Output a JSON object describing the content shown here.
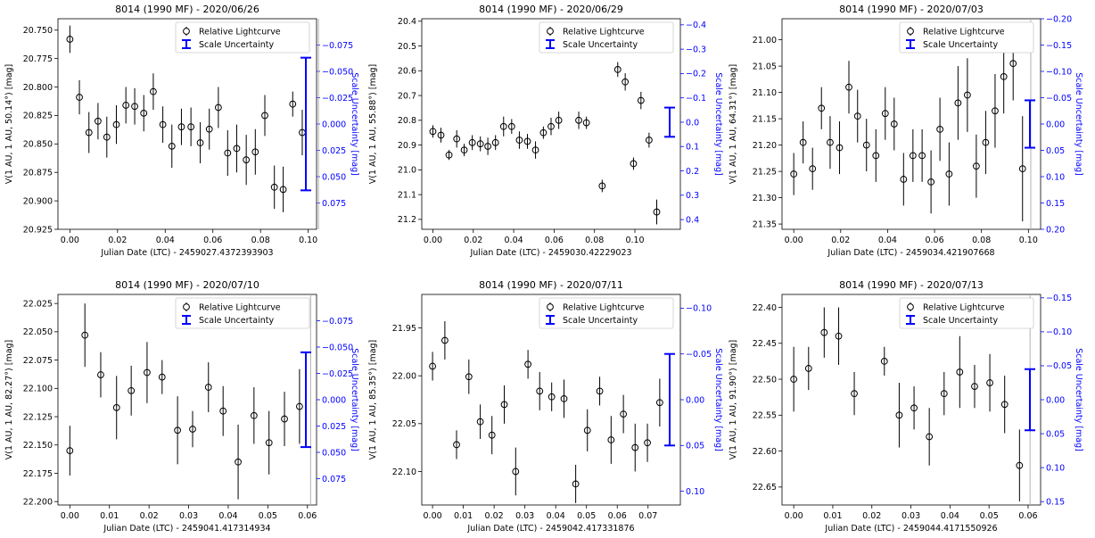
{
  "colors": {
    "data": "#000000",
    "scale": "#0000ff",
    "text": "#000000",
    "right_axis": "#0000ff"
  },
  "legend_labels": {
    "curve": "Relative Lightcurve",
    "scale": "Scale Uncertainty"
  },
  "chart_data": [
    {
      "type": "scatter",
      "title": "8014 (1990 MF) - 2020/06/26",
      "xlabel": "Julian Date (LTC) - 2459027.4372393903",
      "ylabel": "V(1 AU, 1 AU, 50.14°) [mag]",
      "y2label": "Scale Uncertainty [mag]",
      "xlim": [
        -0.005,
        0.1035
      ],
      "ylim": [
        20.925,
        20.74
      ],
      "y2lim": [
        0.1,
        -0.1
      ],
      "xticks": [
        "0.00",
        "0.02",
        "0.04",
        "0.06",
        "0.08",
        "0.10"
      ],
      "yticks": [
        "20.750",
        "20.775",
        "20.800",
        "20.825",
        "20.850",
        "20.875",
        "20.900",
        "20.925"
      ],
      "y2ticks": [
        "−0.075",
        "−0.050",
        "−0.025",
        "0.000",
        "0.025",
        "0.050",
        "0.075"
      ],
      "legend": "top-right",
      "vline": 0.1043,
      "scale_bar": [
        -0.063,
        0.063
      ],
      "series": [
        {
          "x": [
            0.0,
            0.004,
            0.008,
            0.0118,
            0.0155,
            0.0195,
            0.0235,
            0.0272,
            0.031,
            0.035,
            0.039,
            0.0428,
            0.0468,
            0.0508,
            0.0547,
            0.0585,
            0.0623,
            0.0662,
            0.07,
            0.074,
            0.0778,
            0.0818,
            0.0858,
            0.0895,
            0.0935,
            0.0975
          ],
          "y": [
            20.758,
            20.809,
            20.84,
            20.83,
            20.844,
            20.833,
            20.816,
            20.817,
            20.823,
            20.804,
            20.833,
            20.852,
            20.835,
            20.835,
            20.849,
            20.837,
            20.818,
            20.858,
            20.854,
            20.864,
            20.857,
            20.825,
            20.888,
            20.89,
            20.815,
            20.84
          ],
          "err": [
            0.012,
            0.015,
            0.018,
            0.016,
            0.018,
            0.017,
            0.016,
            0.016,
            0.016,
            0.016,
            0.016,
            0.019,
            0.016,
            0.017,
            0.018,
            0.018,
            0.018,
            0.02,
            0.021,
            0.022,
            0.02,
            0.018,
            0.019,
            0.02,
            0.011,
            0.02
          ]
        }
      ]
    },
    {
      "type": "scatter",
      "title": "8014 (1990 MF) - 2020/06/29",
      "xlabel": "Julian Date (LTC) - 2459030.42229023",
      "ylabel": "V(1 AU, 1 AU, 55.88°) [mag]",
      "y2label": "Scale Uncertainty [mag]",
      "xlim": [
        -0.0055,
        0.1225
      ],
      "ylim": [
        21.24,
        20.39
      ],
      "y2lim": [
        0.44,
        -0.425
      ],
      "xticks": [
        "0.00",
        "0.02",
        "0.04",
        "0.06",
        "0.08",
        "0.10"
      ],
      "yticks": [
        "20.4",
        "20.5",
        "20.6",
        "20.7",
        "20.8",
        "20.9",
        "21.0",
        "21.1",
        "21.2"
      ],
      "y2ticks": [
        "−0.4",
        "−0.3",
        "−0.2",
        "−0.1",
        "0.0",
        "0.1",
        "0.2",
        "0.3",
        "0.4"
      ],
      "legend": "top-right",
      "vline": null,
      "scale_bar": [
        -0.06,
        0.06
      ],
      "series": [
        {
          "x": [
            0.0,
            0.004,
            0.008,
            0.0118,
            0.0155,
            0.0195,
            0.0235,
            0.0272,
            0.031,
            0.035,
            0.039,
            0.0428,
            0.0468,
            0.0508,
            0.0547,
            0.0585,
            0.0623,
            0.0685,
            0.0722,
            0.076,
            0.0838,
            0.0915,
            0.0952,
            0.0993,
            0.103,
            0.107,
            0.1108
          ],
          "y": [
            20.845,
            20.86,
            20.94,
            20.875,
            20.92,
            20.89,
            20.895,
            20.905,
            20.89,
            20.825,
            20.825,
            20.88,
            20.885,
            20.92,
            20.85,
            20.825,
            20.8,
            20.455,
            20.8,
            20.81,
            21.065,
            20.595,
            20.645,
            20.975,
            20.72,
            20.88,
            21.17
          ],
          "err": [
            0.025,
            0.03,
            0.02,
            0.035,
            0.025,
            0.03,
            0.03,
            0.035,
            0.03,
            0.04,
            0.03,
            0.035,
            0.03,
            0.035,
            0.025,
            0.035,
            0.035,
            0.03,
            0.035,
            0.025,
            0.025,
            0.03,
            0.035,
            0.025,
            0.035,
            0.03,
            0.05
          ]
        }
      ]
    },
    {
      "type": "scatter",
      "title": "8014 (1990 MF) - 2020/07/03",
      "xlabel": "Julian Date (LTC) - 2459034.421907668",
      "ylabel": "V(1 AU, 1 AU, 64.31°) [mag]",
      "y2label": "Scale Uncertainty [mag]",
      "xlim": [
        -0.005,
        0.1052
      ],
      "ylim": [
        21.36,
        20.96
      ],
      "y2lim": [
        0.2,
        -0.2
      ],
      "xticks": [
        "0.00",
        "0.02",
        "0.04",
        "0.06",
        "0.08",
        "0.10"
      ],
      "yticks": [
        "21.00",
        "21.05",
        "21.10",
        "21.15",
        "21.20",
        "21.25",
        "21.30",
        "21.35"
      ],
      "y2ticks": [
        "−0.20",
        "−0.15",
        "−0.10",
        "−0.05",
        "0.00",
        "0.05",
        "0.10",
        "0.15",
        "0.20"
      ],
      "legend": "top-right",
      "vline": 0.101,
      "scale_bar": [
        -0.045,
        0.045
      ],
      "series": [
        {
          "x": [
            0.0,
            0.004,
            0.008,
            0.0118,
            0.0155,
            0.0195,
            0.0235,
            0.0272,
            0.031,
            0.035,
            0.039,
            0.0428,
            0.0468,
            0.0508,
            0.0547,
            0.0585,
            0.0623,
            0.0662,
            0.07,
            0.074,
            0.0778,
            0.0818,
            0.0858,
            0.0895,
            0.0935,
            0.0975
          ],
          "y": [
            21.255,
            21.195,
            21.245,
            21.13,
            21.195,
            21.205,
            21.09,
            21.145,
            21.2,
            21.22,
            21.14,
            21.16,
            21.265,
            21.22,
            21.22,
            21.27,
            21.17,
            21.255,
            21.12,
            21.105,
            21.24,
            21.195,
            21.135,
            21.07,
            21.045,
            21.245
          ],
          "err": [
            0.04,
            0.04,
            0.04,
            0.04,
            0.05,
            0.05,
            0.05,
            0.05,
            0.05,
            0.05,
            0.05,
            0.05,
            0.05,
            0.05,
            0.05,
            0.06,
            0.06,
            0.06,
            0.07,
            0.07,
            0.06,
            0.06,
            0.07,
            0.07,
            0.07,
            0.1
          ]
        }
      ]
    },
    {
      "type": "scatter",
      "title": "8014 (1990 MF) - 2020/07/10",
      "xlabel": "Julian Date (LTC) - 2459041.417314934",
      "ylabel": "V(1 AU, 1 AU, 82.27°) [mag]",
      "y2label": "Scale Uncertainty [mag]",
      "xlim": [
        -0.003,
        0.0623
      ],
      "ylim": [
        22.203,
        22.017
      ],
      "y2lim": [
        0.1,
        -0.1
      ],
      "xticks": [
        "0.00",
        "0.01",
        "0.02",
        "0.03",
        "0.04",
        "0.05",
        "0.06"
      ],
      "yticks": [
        "22.025",
        "22.050",
        "22.075",
        "22.100",
        "22.125",
        "22.150",
        "22.175",
        "22.200"
      ],
      "y2ticks": [
        "−0.075",
        "−0.050",
        "−0.025",
        "0.000",
        "0.025",
        "0.050",
        "0.075"
      ],
      "legend": "top-right",
      "vline": 0.0608,
      "scale_bar": [
        -0.045,
        0.045
      ],
      "series": [
        {
          "x": [
            0.0,
            0.0038,
            0.0078,
            0.0118,
            0.0155,
            0.0195,
            0.0233,
            0.0272,
            0.031,
            0.035,
            0.0387,
            0.0425,
            0.0465,
            0.0503,
            0.0542,
            0.058
          ],
          "y": [
            22.155,
            22.053,
            22.088,
            22.117,
            22.102,
            22.086,
            22.09,
            22.137,
            22.136,
            22.099,
            22.12,
            22.165,
            22.124,
            22.148,
            22.127,
            22.116
          ],
          "err": [
            0.022,
            0.028,
            0.02,
            0.028,
            0.022,
            0.027,
            0.015,
            0.03,
            0.016,
            0.022,
            0.022,
            0.033,
            0.025,
            0.028,
            0.024,
            0.033
          ]
        }
      ]
    },
    {
      "type": "scatter",
      "title": "8014 (1990 MF) - 2020/07/11",
      "xlabel": "Julian Date (LTC) - 2459042.417331876",
      "ylabel": "V(1 AU, 1 AU, 85.35°) [mag]",
      "y2label": "Scale Uncertainty [mag]",
      "xlim": [
        -0.0035,
        0.0805
      ],
      "ylim": [
        22.135,
        21.915
      ],
      "y2lim": [
        0.115,
        -0.115
      ],
      "xticks": [
        "0.00",
        "0.01",
        "0.02",
        "0.03",
        "0.04",
        "0.05",
        "0.06",
        "0.07"
      ],
      "yticks": [
        "21.95",
        "22.00",
        "22.05",
        "22.10"
      ],
      "y2ticks": [
        "−0.10",
        "−0.05",
        "0.00",
        "0.05",
        "0.10"
      ],
      "legend": "top-right",
      "vline": null,
      "scale_bar": [
        -0.05,
        0.05
      ],
      "series": [
        {
          "x": [
            0.0,
            0.004,
            0.0078,
            0.0118,
            0.0155,
            0.0193,
            0.0233,
            0.027,
            0.031,
            0.0348,
            0.0387,
            0.0427,
            0.0465,
            0.0503,
            0.0543,
            0.058,
            0.062,
            0.0658,
            0.0698,
            0.0738
          ],
          "y": [
            21.99,
            21.963,
            22.072,
            22.001,
            22.048,
            22.062,
            22.03,
            22.1,
            21.988,
            22.016,
            22.022,
            22.024,
            22.113,
            22.057,
            22.016,
            22.067,
            22.04,
            22.075,
            22.07,
            22.028
          ],
          "err": [
            0.015,
            0.02,
            0.015,
            0.018,
            0.018,
            0.02,
            0.02,
            0.025,
            0.015,
            0.02,
            0.015,
            0.02,
            0.02,
            0.022,
            0.015,
            0.025,
            0.02,
            0.025,
            0.02,
            0.025
          ]
        }
      ]
    },
    {
      "type": "scatter",
      "title": "8014 (1990 MF) - 2020/07/13",
      "xlabel": "Julian Date (LTC) - 2459044.4171550926",
      "ylabel": "V(1 AU, 1 AU, 91.90°) [mag]",
      "y2label": "Scale Uncertainty [mag]",
      "xlim": [
        -0.003,
        0.0632
      ],
      "ylim": [
        22.675,
        22.382
      ],
      "y2lim": [
        0.155,
        -0.155
      ],
      "xticks": [
        "0.00",
        "0.01",
        "0.02",
        "0.03",
        "0.04",
        "0.05",
        "0.06"
      ],
      "yticks": [
        "22.40",
        "22.45",
        "22.50",
        "22.55",
        "22.60",
        "22.65"
      ],
      "y2ticks": [
        "−0.15",
        "−0.10",
        "−0.05",
        "0.00",
        "0.05",
        "0.10",
        "0.15"
      ],
      "legend": "top-right",
      "vline": 0.0605,
      "scale_bar": [
        -0.045,
        0.045
      ],
      "series": [
        {
          "x": [
            0.0,
            0.0038,
            0.0078,
            0.0115,
            0.0155,
            0.0232,
            0.027,
            0.0308,
            0.0347,
            0.0385,
            0.0425,
            0.0463,
            0.0502,
            0.054,
            0.0578
          ],
          "y": [
            22.5,
            22.485,
            22.435,
            22.44,
            22.52,
            22.475,
            22.55,
            22.54,
            22.58,
            22.52,
            22.49,
            22.51,
            22.505,
            22.535,
            22.62
          ],
          "err": [
            0.045,
            0.03,
            0.035,
            0.04,
            0.03,
            0.02,
            0.045,
            0.03,
            0.04,
            0.03,
            0.05,
            0.03,
            0.04,
            0.04,
            0.05
          ]
        }
      ]
    }
  ]
}
